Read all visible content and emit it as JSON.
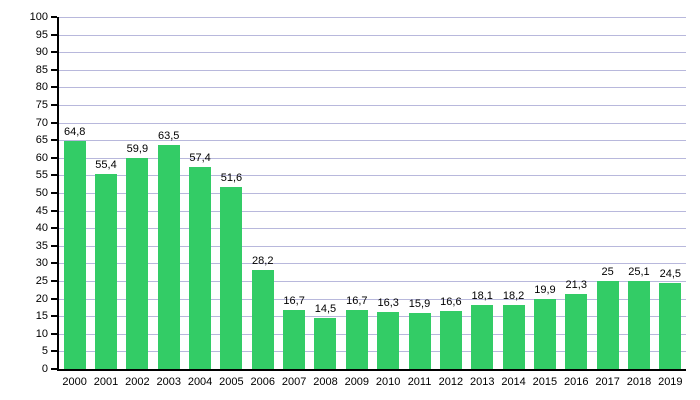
{
  "chart_data": {
    "type": "bar",
    "title": "",
    "xlabel": "",
    "ylabel": "",
    "categories": [
      "2000",
      "2001",
      "2002",
      "2003",
      "2004",
      "2005",
      "2006",
      "2007",
      "2008",
      "2009",
      "2010",
      "2011",
      "2012",
      "2013",
      "2014",
      "2015",
      "2016",
      "2017",
      "2018",
      "2019"
    ],
    "values": [
      64.8,
      55.4,
      59.9,
      63.5,
      57.4,
      51.6,
      28.2,
      16.7,
      14.5,
      16.7,
      16.3,
      15.9,
      16.6,
      18.1,
      18.2,
      19.9,
      21.3,
      25,
      25.1,
      24.5
    ],
    "value_labels": [
      "64,8",
      "55,4",
      "59,9",
      "63,5",
      "57,4",
      "51,6",
      "28,2",
      "16,7",
      "14,5",
      "16,7",
      "16,3",
      "15,9",
      "16,6",
      "18,1",
      "18,2",
      "19,9",
      "21,3",
      "25",
      "25,1",
      "24,5"
    ],
    "ylim": [
      0,
      100
    ],
    "ytick_step": 5,
    "grid": "horizontal",
    "legend_position": "none",
    "bar_color": "#33cc66",
    "grid_color": "#b8b8dc",
    "axis_color": "#000000",
    "text_color": "#000000"
  }
}
